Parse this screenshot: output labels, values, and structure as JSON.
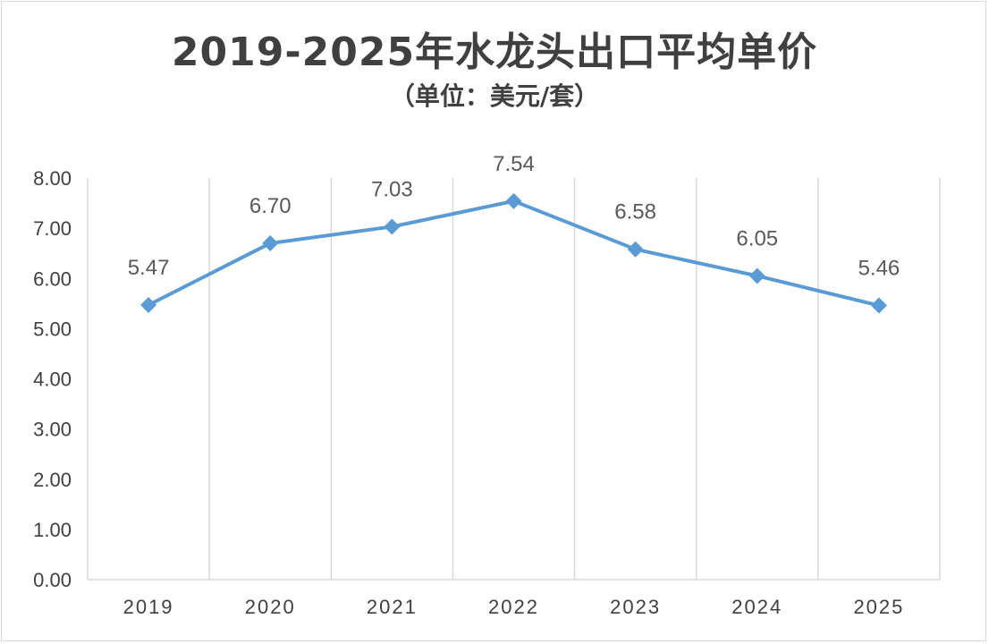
{
  "chart_data": {
    "type": "line",
    "title": "2019-2025年水龙头出口平均单价",
    "subtitle": "（单位：美元/套）",
    "categories": [
      "2019",
      "2020",
      "2021",
      "2022",
      "2023",
      "2024",
      "2025"
    ],
    "series": [
      {
        "values": [
          5.47,
          6.7,
          7.03,
          7.54,
          6.58,
          6.05,
          5.46
        ],
        "labels": [
          "5.47",
          "6.70",
          "7.03",
          "7.54",
          "6.58",
          "6.05",
          "5.46"
        ],
        "color": "#5b9bd5",
        "marker": "diamond"
      }
    ],
    "ylim": [
      0,
      8
    ],
    "yticks": [
      "0.00",
      "1.00",
      "2.00",
      "3.00",
      "4.00",
      "5.00",
      "6.00",
      "7.00",
      "8.00"
    ],
    "grid": "vertical",
    "gridColor": "#d9d9d9",
    "legend": "none"
  }
}
